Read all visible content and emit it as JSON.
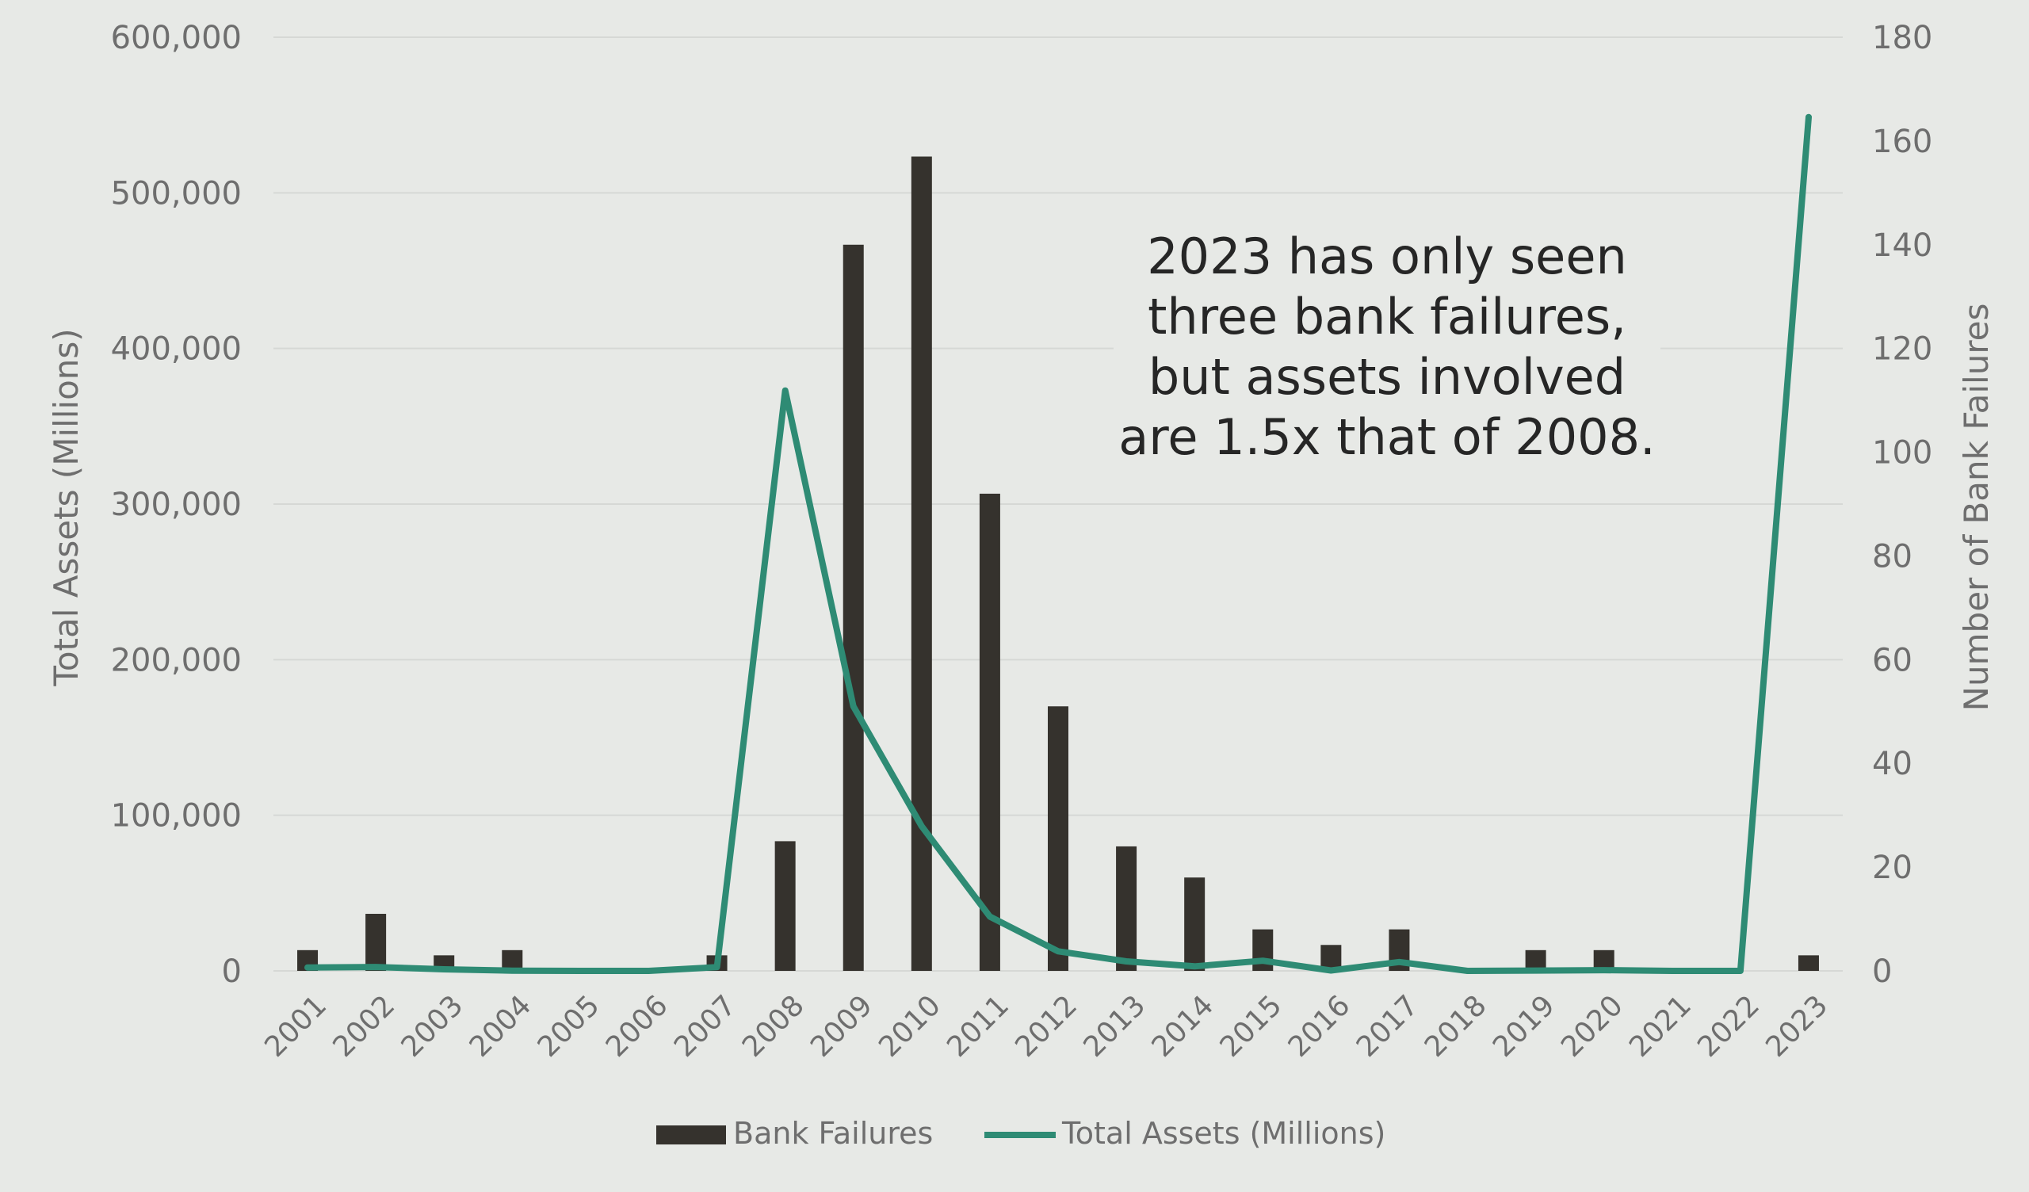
{
  "chart_data": {
    "type": "bar+line",
    "categories": [
      "2001",
      "2002",
      "2003",
      "2004",
      "2005",
      "2006",
      "2007",
      "2008",
      "2009",
      "2010",
      "2011",
      "2012",
      "2013",
      "2014",
      "2015",
      "2016",
      "2017",
      "2018",
      "2019",
      "2020",
      "2021",
      "2022",
      "2023"
    ],
    "series": [
      {
        "name": "Bank Failures",
        "type": "bar",
        "axis": "right",
        "color": "#35322d",
        "values": [
          4,
          11,
          3,
          4,
          0,
          0,
          3,
          25,
          140,
          157,
          92,
          51,
          24,
          18,
          8,
          5,
          8,
          0,
          4,
          4,
          0,
          0,
          3
        ]
      },
      {
        "name": "Total Assets (Millions)",
        "type": "line",
        "axis": "left",
        "color": "#2e8b74",
        "values": [
          2200,
          2500,
          1000,
          170,
          0,
          0,
          2400,
          373000,
          170000,
          93000,
          34900,
          12600,
          6100,
          2900,
          6500,
          280,
          5700,
          0,
          210,
          460,
          0,
          0,
          548700
        ]
      }
    ],
    "y_left": {
      "label": "Total Assets (Millions)",
      "lim": [
        0,
        600000
      ],
      "ticks": [
        "0",
        "100,000",
        "200,000",
        "300,000",
        "400,000",
        "500,000",
        "600,000"
      ]
    },
    "y_right": {
      "label": "Number of Bank Failures",
      "lim": [
        0,
        180
      ],
      "ticks": [
        "0",
        "20",
        "40",
        "60",
        "80",
        "100",
        "120",
        "140",
        "160",
        "180"
      ]
    },
    "grid": true,
    "legend_position": "bottom-center",
    "annotation": [
      "2023 has only seen",
      "three bank failures,",
      "but assets involved",
      "are 1.5x that of 2008."
    ],
    "colors": {
      "background": "#e7e9e6",
      "grid": "#d6d8d5",
      "bar": "#35322d",
      "line": "#2e8b74"
    }
  }
}
